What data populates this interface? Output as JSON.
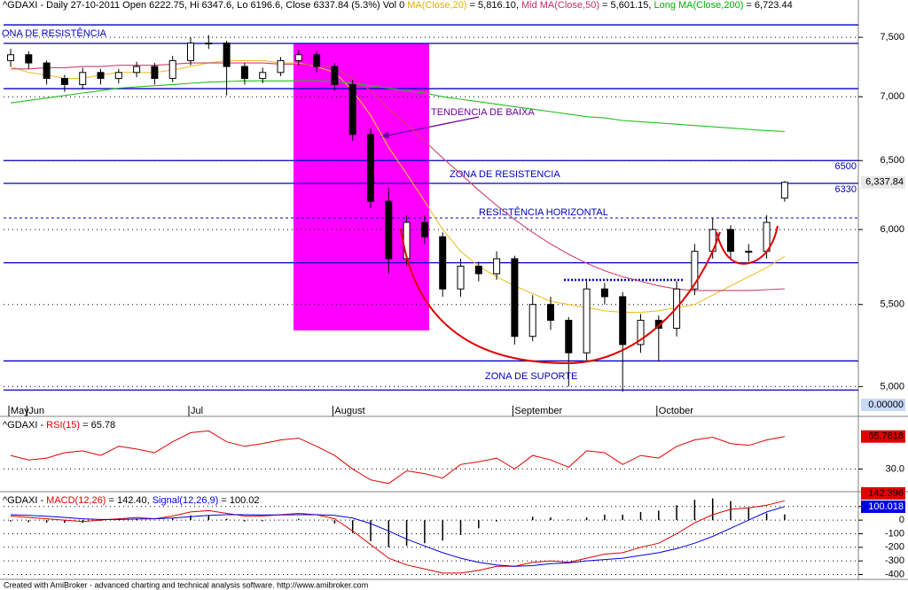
{
  "chart_data": [
    {
      "type": "candlestick",
      "header": [
        {
          "text": "^GDAXI - Daily 27-10-2011 Open 6222.75, Hi 6347.6, Lo 6196.6, Close 6337.84 (5.3%) Vol 0 ",
          "color": "#000000"
        },
        {
          "text": "MA(Close,20)",
          "color": "#e0b000"
        },
        {
          "text": " = 5,816.10, ",
          "color": "#000000"
        },
        {
          "text": "Mid MA(Close,50)",
          "color": "#c03060"
        },
        {
          "text": " = 5,601.15, ",
          "color": "#000000"
        },
        {
          "text": "Long MA(Close,200)",
          "color": "#00b000"
        },
        {
          "text": " = 6,723.44",
          "color": "#000000"
        }
      ],
      "categories": [
        "May",
        "Jun",
        null,
        null,
        null,
        null,
        null,
        null,
        null,
        null,
        "Jul",
        null,
        null,
        null,
        null,
        null,
        null,
        null,
        "August",
        null,
        null,
        null,
        null,
        null,
        null,
        null,
        null,
        null,
        "September",
        null,
        null,
        null,
        null,
        null,
        null,
        null,
        "October",
        null,
        null,
        null,
        null,
        null,
        null,
        null
      ],
      "open": [
        7300,
        7350,
        7280,
        7150,
        7100,
        7200,
        7150,
        7200,
        7250,
        7150,
        7300,
        7450,
        7450,
        7250,
        7150,
        7200,
        7300,
        7350,
        7250,
        7100,
        6700,
        6200,
        5800,
        6050,
        5950,
        5600,
        5750,
        5700,
        5800,
        5300,
        5500,
        5400,
        5200,
        5600,
        5550,
        5250,
        5400,
        5350,
        5600,
        5850,
        6000,
        5850,
        5850,
        6222.75
      ],
      "high": [
        7400,
        7380,
        7300,
        7180,
        7240,
        7230,
        7230,
        7290,
        7280,
        7340,
        7500,
        7520,
        7470,
        7280,
        7240,
        7330,
        7390,
        7380,
        7280,
        7140,
        6750,
        6300,
        6100,
        6100,
        5980,
        5800,
        5780,
        5850,
        5820,
        5560,
        5550,
        5420,
        5650,
        5640,
        5580,
        5440,
        5430,
        5650,
        5900,
        6080,
        6030,
        5900,
        6100,
        6347.6
      ],
      "low": [
        7250,
        7230,
        7100,
        7040,
        7060,
        7100,
        7110,
        7160,
        7100,
        7120,
        7260,
        7400,
        7010,
        7100,
        7110,
        7170,
        7260,
        7200,
        7050,
        6650,
        6150,
        5700,
        5750,
        5900,
        5550,
        5550,
        5650,
        5660,
        5250,
        5270,
        5340,
        5000,
        5150,
        5500,
        4970,
        5200,
        5150,
        5300,
        5560,
        5800,
        5800,
        5780,
        5800,
        6196.6
      ],
      "close": [
        7350,
        7280,
        7150,
        7100,
        7200,
        7150,
        7200,
        7250,
        7150,
        7300,
        7450,
        7450,
        7250,
        7150,
        7200,
        7300,
        7350,
        7250,
        7100,
        6700,
        6200,
        5800,
        6050,
        5950,
        5600,
        5750,
        5700,
        5800,
        5300,
        5500,
        5400,
        5200,
        5600,
        5550,
        5250,
        5400,
        5350,
        5600,
        5850,
        6000,
        5850,
        5850,
        6050,
        6337.84
      ],
      "up_color": "#ffffff",
      "down_color": "#000000",
      "series": [
        {
          "color": "#f0c030",
          "values": [
            7250,
            7200,
            7180,
            7150,
            7150,
            7180,
            7200,
            7200,
            7200,
            7220,
            7250,
            7280,
            7300,
            7300,
            7300,
            7280,
            7280,
            7250,
            7200,
            7050,
            6850,
            6600,
            6400,
            6200,
            6000,
            5850,
            5750,
            5680,
            5620,
            5570,
            5520,
            5500,
            5480,
            5460,
            5450,
            5450,
            5460,
            5480,
            5500,
            5560,
            5620,
            5680,
            5740,
            5816.1
          ]
        },
        {
          "color": "#d04070",
          "values": [
            7230,
            7230,
            7240,
            7240,
            7250,
            7250,
            7260,
            7260,
            7260,
            7270,
            7280,
            7280,
            7280,
            7280,
            7280,
            7270,
            7270,
            7260,
            7240,
            7150,
            7050,
            6900,
            6780,
            6650,
            6520,
            6400,
            6280,
            6170,
            6070,
            5980,
            5900,
            5830,
            5770,
            5720,
            5680,
            5650,
            5620,
            5600,
            5590,
            5590,
            5590,
            5590,
            5595,
            5601.15
          ]
        },
        {
          "color": "#20c020",
          "values": [
            6950,
            6970,
            6990,
            7010,
            7030,
            7050,
            7070,
            7080,
            7090,
            7100,
            7110,
            7120,
            7125,
            7130,
            7130,
            7130,
            7130,
            7130,
            7125,
            7110,
            7090,
            7070,
            7050,
            7030,
            7000,
            6980,
            6960,
            6940,
            6920,
            6900,
            6880,
            6860,
            6840,
            6830,
            6810,
            6800,
            6790,
            6780,
            6770,
            6760,
            6750,
            6740,
            6730,
            6723.44
          ]
        }
      ],
      "ylim": [
        4890,
        7720
      ],
      "log_scale": true,
      "grid": true,
      "yticks": [
        {
          "value": 7500,
          "label": "7,500"
        },
        {
          "value": 7000,
          "label": "7,000"
        },
        {
          "value": 6500,
          "label": "6,500"
        },
        {
          "value": 6000,
          "label": "6,000"
        },
        {
          "value": 5500,
          "label": "5,500"
        },
        {
          "value": 5000,
          "label": "5,000"
        }
      ],
      "level_color": "#0000c0",
      "levels": [
        {
          "value": 7609
        },
        {
          "value": 7447
        },
        {
          "value": 7066
        },
        {
          "value": 6500,
          "show_label": true
        },
        {
          "value": 6330,
          "show_label": true
        },
        {
          "value": 6081,
          "dashed": true
        },
        {
          "value": 5773
        },
        {
          "value": 5151
        },
        {
          "value": 4980
        }
      ],
      "annotations": [
        "ONA DE RESISTÊNCIA",
        "TENDENCIA DE BAIXA",
        "ZONA DE RESISTENCIA",
        "RESISTÊNCIA HORIZONTAL",
        "ZONA DE SUPORTE"
      ],
      "last_value_label": "6,337.84",
      "volume_label": "0.00000"
    },
    {
      "type": "line",
      "header": [
        {
          "text": "^GDAXI - ",
          "color": "#000000"
        },
        {
          "text": "RSI(15)",
          "color": "#e00000"
        },
        {
          "text": " = 65.78",
          "color": "#000000"
        }
      ],
      "series": [
        {
          "color": "#e00000",
          "values": [
            45,
            40,
            42,
            48,
            50,
            45,
            55,
            52,
            48,
            60,
            70,
            72,
            60,
            55,
            58,
            62,
            64,
            55,
            45,
            30,
            18,
            14,
            28,
            25,
            20,
            35,
            38,
            42,
            30,
            45,
            40,
            32,
            50,
            48,
            35,
            45,
            42,
            55,
            62,
            65,
            58,
            56,
            62,
            65.78
          ]
        }
      ],
      "ylim": [
        8,
        86
      ],
      "yticks": [
        {
          "value": 30,
          "label": "30.0"
        }
      ],
      "grid": true,
      "last_value_label": "65.7818"
    },
    {
      "type": "macd",
      "header": [
        {
          "text": "^GDAXI - ",
          "color": "#000000"
        },
        {
          "text": "MACD(12,26)",
          "color": "#e00000"
        },
        {
          "text": " = 142.40, ",
          "color": "#000000"
        },
        {
          "text": "Signal(12,26,9)",
          "color": "#0000e0"
        },
        {
          "text": " = 100.02",
          "color": "#000000"
        }
      ],
      "series": [
        {
          "color": "#e00000",
          "values": [
            30,
            20,
            10,
            0,
            -10,
            0,
            10,
            20,
            10,
            30,
            60,
            70,
            50,
            30,
            30,
            40,
            50,
            40,
            10,
            -80,
            -180,
            -280,
            -330,
            -360,
            -390,
            -390,
            -370,
            -340,
            -340,
            -310,
            -300,
            -310,
            -280,
            -250,
            -240,
            -200,
            -170,
            -100,
            -20,
            40,
            80,
            90,
            110,
            142.4
          ],
          "last_value_label": "142.396"
        },
        {
          "color": "#0000e0",
          "values": [
            40,
            35,
            28,
            20,
            10,
            5,
            5,
            8,
            10,
            15,
            25,
            35,
            40,
            40,
            38,
            38,
            40,
            40,
            35,
            15,
            -25,
            -80,
            -140,
            -190,
            -240,
            -280,
            -310,
            -330,
            -340,
            -335,
            -320,
            -315,
            -300,
            -290,
            -280,
            -260,
            -240,
            -210,
            -170,
            -120,
            -60,
            0,
            60,
            100.02
          ],
          "last_value_label": "100.018"
        }
      ],
      "histogram": {
        "color": "#000000",
        "values": [
          -10,
          -15,
          -18,
          -20,
          -20,
          -5,
          5,
          12,
          0,
          15,
          35,
          35,
          10,
          -10,
          -8,
          2,
          10,
          0,
          -25,
          -95,
          -155,
          -200,
          -190,
          -170,
          -150,
          -110,
          -60,
          -10,
          0,
          25,
          20,
          5,
          20,
          40,
          40,
          60,
          70,
          110,
          150,
          160,
          140,
          90,
          50,
          42.38
        ]
      },
      "ylim": [
        -410,
        190
      ],
      "yticks": [
        100,
        0,
        -100,
        -200,
        -300,
        -400
      ],
      "grid": true
    }
  ],
  "footer": "Created with AmiBroker - advanced charting and technical analysis software. http://www.amibroker.com"
}
